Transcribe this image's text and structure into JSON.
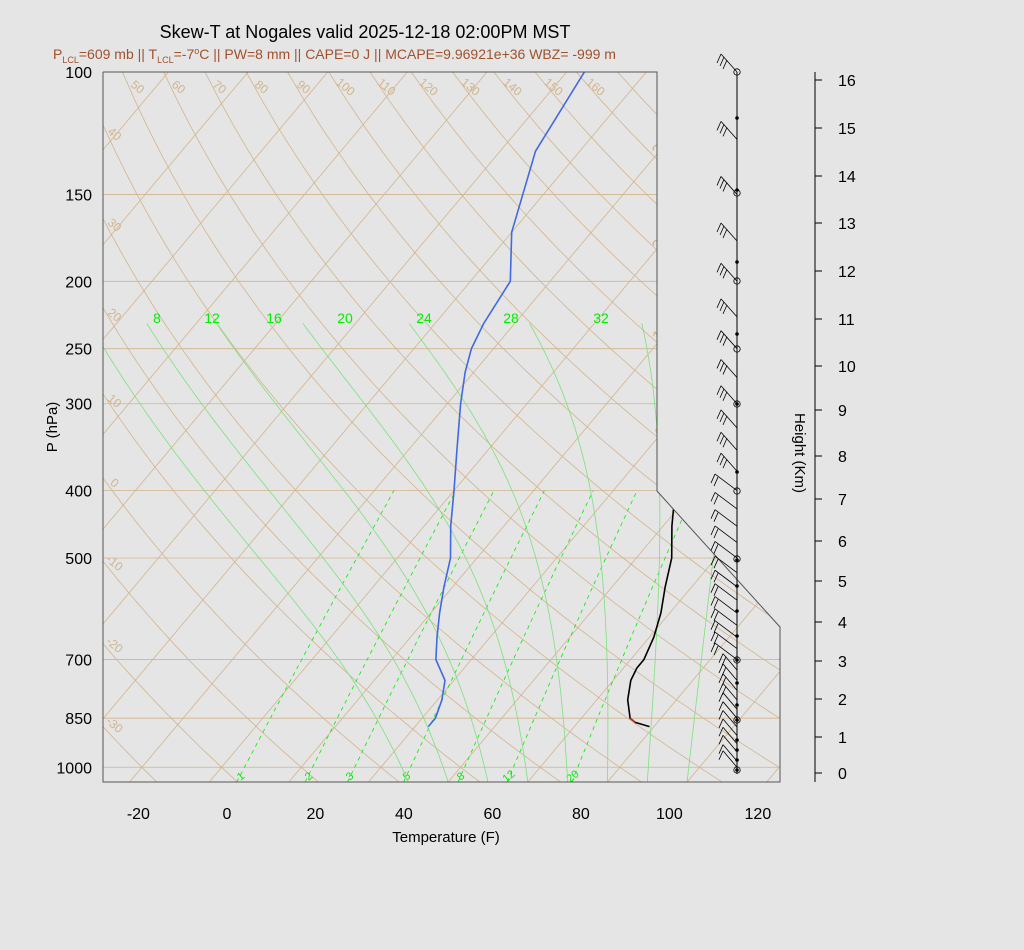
{
  "chart_data": {
    "type": "skew-t",
    "title": "Skew-T at Nogales valid 2025-12-18 02:00PM MST",
    "subtitle": {
      "p_lcl_sub": "LCL",
      "p_lcl_rest": "=609 mb || T",
      "t_lcl_sub": "LCL",
      "t_lcl_rest": "=-7",
      "deg": "o",
      "rest": "C || PW=8 mm || CAPE=0 J || MCAPE=9.96921e+36 WBZ= -999 m",
      "p": "P"
    },
    "xlabel": "Temperature (F)",
    "ylabel": "P (hPa)",
    "y2label": "Height (Km)",
    "xlim": [
      -28,
      125
    ],
    "plim": [
      1050,
      100
    ],
    "x_ticks": [
      -20,
      0,
      20,
      40,
      60,
      80,
      100,
      120
    ],
    "p_ticks": [
      100,
      150,
      200,
      250,
      300,
      400,
      500,
      700,
      850,
      1000
    ],
    "height_ticks_km": [
      0,
      1,
      2,
      3,
      4,
      5,
      6,
      7,
      8,
      9,
      10,
      11,
      12,
      13,
      14,
      15,
      16
    ],
    "isotherm_labels": [
      "-30",
      "-20",
      "-10",
      "0",
      "10",
      "20",
      "30",
      "40",
      "50",
      "60",
      "70",
      "80",
      "90",
      "100",
      "110",
      "120",
      "130",
      "140",
      "150",
      "160"
    ],
    "dry_adiabat_labels": [
      "-10",
      "0",
      "10",
      "20",
      "30",
      "40",
      "50",
      "60",
      "70",
      "80",
      "90",
      "100",
      "110",
      "120",
      "130",
      "140",
      "150",
      "160"
    ],
    "mixing_ratio_labels": [
      "1",
      "2",
      "3",
      "5",
      "8",
      "12",
      "20"
    ],
    "wetbulb_labels": [
      "8",
      "12",
      "16",
      "20",
      "24",
      "28",
      "32"
    ],
    "series": [
      {
        "name": "temperature",
        "color": "#000000",
        "points": [
          [
            874,
            85
          ],
          [
            862,
            81
          ],
          [
            850,
            79
          ],
          [
            800,
            75
          ],
          [
            750,
            72
          ],
          [
            720,
            71
          ],
          [
            700,
            71
          ],
          [
            650,
            69
          ],
          [
            600,
            66
          ],
          [
            550,
            62
          ],
          [
            500,
            58
          ],
          [
            450,
            52
          ],
          [
            400,
            46
          ],
          [
            350,
            40
          ],
          [
            300,
            33
          ],
          [
            270,
            30
          ],
          [
            250,
            28
          ],
          [
            230,
            26
          ],
          [
            200,
            27
          ],
          [
            170,
            31
          ],
          [
            140,
            37
          ],
          [
            120,
            42
          ],
          [
            100,
            52
          ]
        ]
      },
      {
        "name": "dewpoint",
        "color": "#4169e1",
        "points": [
          [
            874,
            35
          ],
          [
            850,
            35
          ],
          [
            800,
            33
          ],
          [
            750,
            30
          ],
          [
            700,
            24
          ],
          [
            650,
            20
          ],
          [
            600,
            16
          ],
          [
            550,
            12
          ],
          [
            500,
            8
          ],
          [
            450,
            2
          ],
          [
            400,
            -4
          ],
          [
            350,
            -11
          ],
          [
            300,
            -19
          ],
          [
            270,
            -24
          ],
          [
            250,
            -27
          ],
          [
            230,
            -29
          ],
          [
            200,
            -31
          ],
          [
            170,
            -40
          ],
          [
            130,
            -50
          ],
          [
            100,
            -54
          ]
        ]
      }
    ],
    "wind_profile_levels_hpa": [
      1000,
      980,
      950,
      925,
      900,
      875,
      850,
      825,
      800,
      775,
      750,
      725,
      700,
      675,
      650,
      625,
      600,
      575,
      550,
      525,
      500,
      475,
      450,
      425,
      400,
      375,
      350,
      325,
      300,
      275,
      250,
      225,
      200,
      175,
      150,
      125,
      100
    ],
    "grid": "on",
    "colors": {
      "background": "#e5e5e5",
      "isotherm": "#d2b48c",
      "mixing_ratio": "#00ee00",
      "temperature": "#000000",
      "dewpoint": "#4169e1"
    }
  }
}
